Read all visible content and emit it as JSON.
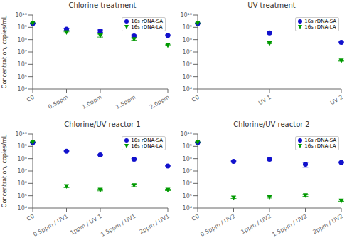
{
  "chart_data": [
    {
      "type": "scatter",
      "title": "Chlorine treatment",
      "categories": [
        "C0",
        "0.5ppm",
        "1.0ppm",
        "1.5ppm",
        "2.0ppm"
      ],
      "series": [
        {
          "name": "16s rDNA-SA",
          "color": "#1111cc",
          "marker": "circle",
          "values": [
            2000000000.0,
            700000000.0,
            500000000.0,
            200000000.0,
            220000000.0
          ],
          "errors": [
            100000000.0,
            150000000.0,
            120000000.0,
            40000000.0,
            20000000.0
          ]
        },
        {
          "name": "16s rDNA-LA",
          "color": "#009900",
          "marker": "triangle-down",
          "values": [
            2200000000.0,
            400000000.0,
            220000000.0,
            110000000.0,
            35000000.0
          ],
          "errors": [
            100000000.0,
            50000000.0,
            60000000.0,
            20000000.0,
            3000000.0
          ]
        }
      ],
      "y_label": "Concentration, copies/mL",
      "ylim": [
        10000,
        10000000000
      ],
      "yticks": [
        {
          "value": 10000,
          "label": "10⁴"
        },
        {
          "value": 100000,
          "label": "10⁵"
        },
        {
          "value": 1000000,
          "label": "10⁶"
        },
        {
          "value": 10000000,
          "label": "10⁷"
        },
        {
          "value": 100000000,
          "label": "10⁸"
        },
        {
          "value": 1000000000,
          "label": "10⁹"
        },
        {
          "value": 10000000000,
          "label": "10¹⁰"
        }
      ],
      "log": "y",
      "legend": "upper right",
      "grid": false
    },
    {
      "type": "scatter",
      "title": "UV treatment",
      "categories": [
        "C0",
        "UV 1",
        "UV 2"
      ],
      "series": [
        {
          "name": "16s rDNA-SA",
          "color": "#1111cc",
          "marker": "circle",
          "values": [
            2000000000.0,
            350000000.0,
            60000000.0
          ],
          "errors": [
            100000000.0,
            20000000.0,
            5000000.0
          ]
        },
        {
          "name": "16s rDNA-LA",
          "color": "#009900",
          "marker": "triangle-down",
          "values": [
            2200000000.0,
            50000000.0,
            2000000.0
          ],
          "errors": [
            100000000.0,
            3000000.0,
            200000.0
          ]
        }
      ],
      "ylim": [
        10000,
        10000000000
      ],
      "yticks": [
        {
          "value": 10000,
          "label": "10⁴"
        },
        {
          "value": 100000,
          "label": "10⁵"
        },
        {
          "value": 1000000,
          "label": "10⁶"
        },
        {
          "value": 10000000,
          "label": "10⁷"
        },
        {
          "value": 100000000,
          "label": "10⁸"
        },
        {
          "value": 1000000000,
          "label": "10⁹"
        },
        {
          "value": 10000000000,
          "label": "10¹⁰"
        }
      ],
      "log": "y",
      "legend": "upper right",
      "grid": false
    },
    {
      "type": "scatter",
      "title": "Chlorine/UV reactor-1",
      "categories": [
        "C0",
        "0.5ppm / UV1",
        "1ppm / UV 1",
        "1.5ppm / UV1",
        "2ppm / UV1"
      ],
      "series": [
        {
          "name": "16s rDNA-SA",
          "color": "#1111cc",
          "marker": "circle",
          "values": [
            2000000000.0,
            400000000.0,
            200000000.0,
            90000000.0,
            25000000.0
          ],
          "errors": [
            100000000.0,
            30000000.0,
            20000000.0,
            10000000.0,
            3000000.0
          ]
        },
        {
          "name": "16s rDNA-LA",
          "color": "#009900",
          "marker": "triangle-down",
          "values": [
            2200000000.0,
            600000.0,
            300000.0,
            700000.0,
            300000.0
          ],
          "errors": [
            100000000.0,
            150000.0,
            50000.0,
            150000.0,
            40000.0
          ]
        }
      ],
      "y_label": "Concentration, copies/mL",
      "ylim": [
        10000,
        10000000000
      ],
      "yticks": [
        {
          "value": 10000,
          "label": "10⁴"
        },
        {
          "value": 100000,
          "label": "10⁵"
        },
        {
          "value": 1000000,
          "label": "10⁶"
        },
        {
          "value": 10000000,
          "label": "10⁷"
        },
        {
          "value": 100000000,
          "label": "10⁸"
        },
        {
          "value": 1000000000,
          "label": "10⁹"
        },
        {
          "value": 10000000000,
          "label": "10¹⁰"
        }
      ],
      "log": "y",
      "legend": "upper right",
      "grid": false
    },
    {
      "type": "scatter",
      "title": "Chlorine/UV reactor-2",
      "categories": [
        "C0",
        "0.5ppm / UV2",
        "1ppm / UV2",
        "1.5ppm / UV2",
        "2ppm / UV2"
      ],
      "series": [
        {
          "name": "16s rDNA-SA",
          "color": "#1111cc",
          "marker": "circle",
          "values": [
            2000000000.0,
            60000000.0,
            90000000.0,
            35000000.0,
            50000000.0
          ],
          "errors": [
            100000000.0,
            5000000.0,
            8000000.0,
            15000000.0,
            5000000.0
          ]
        },
        {
          "name": "16s rDNA-LA",
          "color": "#009900",
          "marker": "triangle-down",
          "values": [
            2200000000.0,
            70000.0,
            80000.0,
            110000.0,
            40000.0
          ],
          "errors": [
            100000000.0,
            10000.0,
            15000.0,
            20000.0,
            5000.0
          ]
        }
      ],
      "ylim": [
        10000,
        10000000000
      ],
      "yticks": [
        {
          "value": 10000,
          "label": "10⁴"
        },
        {
          "value": 100000,
          "label": "10⁵"
        },
        {
          "value": 1000000,
          "label": "10⁶"
        },
        {
          "value": 10000000,
          "label": "10⁷"
        },
        {
          "value": 100000000,
          "label": "10⁸"
        },
        {
          "value": 1000000000,
          "label": "10⁹"
        },
        {
          "value": 10000000000,
          "label": "10¹⁰"
        }
      ],
      "log": "y",
      "legend": "upper right",
      "grid": false
    }
  ]
}
